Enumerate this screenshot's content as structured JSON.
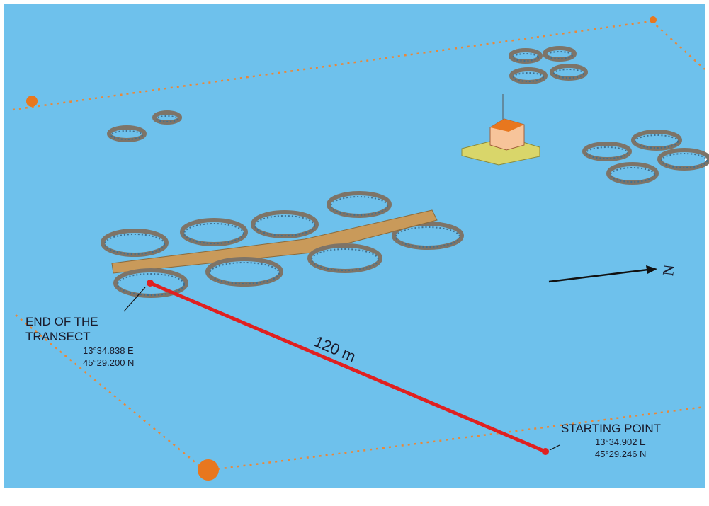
{
  "labels": {
    "end": {
      "title": [
        "END OF THE",
        "TRANSECT"
      ],
      "lon": "13°34.838 E",
      "lat": "45°29.200 N"
    },
    "start": {
      "title": "STARTING POINT",
      "lon": "13°34.902 E",
      "lat": "45°29.246 N"
    },
    "distance": "120 m",
    "north": "N"
  }
}
